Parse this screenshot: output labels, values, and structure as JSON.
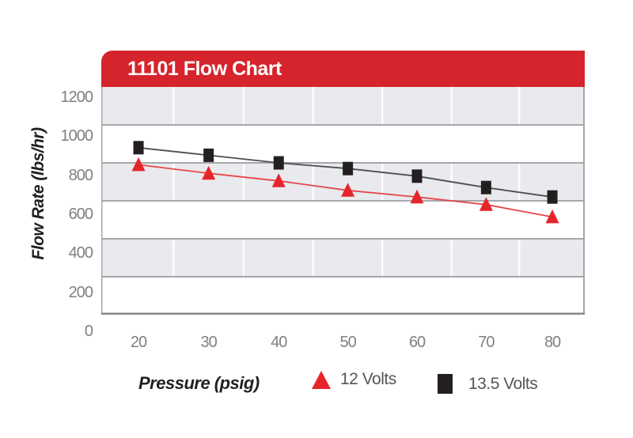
{
  "banner": {
    "color": "#d6242c",
    "text_color": "#ffffff"
  },
  "chart_data": {
    "type": "line",
    "title": "11101 Flow Chart",
    "xlabel": "Pressure (psig)",
    "ylabel": "Flow Rate (lbs/hr)",
    "categories": [
      20,
      30,
      40,
      50,
      60,
      70,
      80
    ],
    "x_tick_labels": [
      "20",
      "30",
      "40",
      "50",
      "60",
      "70",
      "80"
    ],
    "y_ticks": [
      0,
      200,
      400,
      600,
      800,
      1000,
      1200
    ],
    "ylim": [
      0,
      1200
    ],
    "grid": "horizontal gray lines every 200 with alternating gray/white bands; vertical white lines between categories",
    "legend_position": "bottom",
    "series": [
      {
        "name": "12 Volts",
        "marker": "triangle",
        "color": "#e6252b",
        "line_color": "#e6464b",
        "values": [
          790,
          745,
          705,
          655,
          620,
          580,
          515
        ]
      },
      {
        "name": "13.5 Volts",
        "marker": "square",
        "color": "#231f20",
        "line_color": "#4d4e50",
        "values": [
          880,
          840,
          800,
          770,
          730,
          670,
          620
        ]
      }
    ],
    "plot_style": {
      "band_color": "#e9eaed",
      "band_alt_color": "#ffffff",
      "hgrid_color": "#a5a7aa",
      "vgrid_color": "#ffffff",
      "border_color": "#a5a7aa",
      "bottom_border_color": "#88898c",
      "tick_label_color": "#7e8083"
    }
  }
}
